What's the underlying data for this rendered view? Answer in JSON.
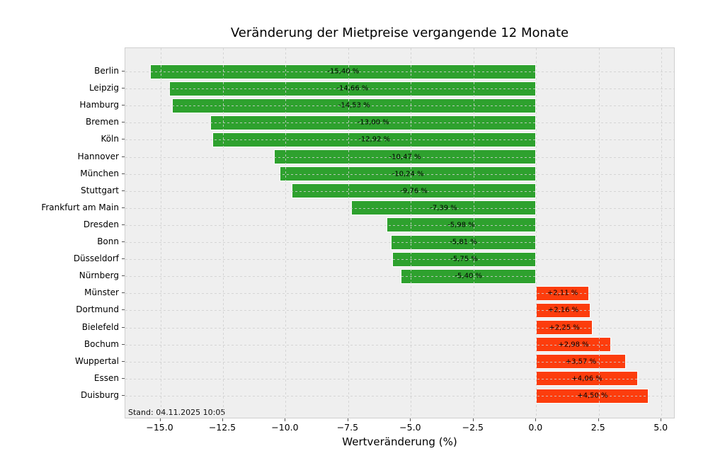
{
  "title": "Veränderung der Mietpreise vergangende 12 Monate",
  "xlabel": "Wertveränderung (%)",
  "stand_note": "Stand: 04.11.2025 10:05",
  "colors": {
    "negative_bar": "#2ea12e",
    "positive_bar": "#fc3d0d",
    "plot_background": "#efefef",
    "grid": "#d0d0d0",
    "text": "#000000"
  },
  "chart_data": {
    "type": "bar",
    "orientation": "horizontal",
    "title": "Veränderung der Mietpreise vergangende 12 Monate",
    "xlabel": "Wertveränderung (%)",
    "grid": true,
    "xlim": [
      -16.4,
      5.56
    ],
    "categories": [
      "Berlin",
      "Leipzig",
      "Hamburg",
      "Bremen",
      "Köln",
      "Hannover",
      "München",
      "Stuttgart",
      "Frankfurt am Main",
      "Dresden",
      "Bonn",
      "Düsseldorf",
      "Nürnberg",
      "Münster",
      "Dortmund",
      "Bielefeld",
      "Bochum",
      "Wuppertal",
      "Essen",
      "Duisburg"
    ],
    "values": [
      -15.4,
      -14.66,
      -14.53,
      -13.0,
      -12.92,
      -10.47,
      -10.24,
      -9.76,
      -7.39,
      -5.98,
      -5.81,
      -5.75,
      -5.4,
      2.11,
      2.16,
      2.25,
      2.98,
      3.57,
      4.06,
      4.5
    ],
    "value_labels": [
      "-15,40 %",
      "-14,66 %",
      "-14,53 %",
      "-13,00 %",
      "-12,92 %",
      "-10,47 %",
      "-10,24 %",
      "-9,76 %",
      "-7,39 %",
      "-5,98 %",
      "-5,81 %",
      "-5,75 %",
      "-5,40 %",
      "+2,11 %",
      "+2,16 %",
      "+2,25 %",
      "+2,98 %",
      "+3,57 %",
      "+4,06 %",
      "+4,50 %"
    ],
    "xticks": [
      -15.0,
      -12.5,
      -10.0,
      -7.5,
      -5.0,
      -2.5,
      0.0,
      2.5,
      5.0
    ],
    "xtick_labels": [
      "−15.0",
      "−12.5",
      "−10.0",
      "−7.5",
      "−5.0",
      "−2.5",
      "0.0",
      "2.5",
      "5.0"
    ],
    "annotation": "Stand: 04.11.2025 10:05",
    "legend": null
  }
}
